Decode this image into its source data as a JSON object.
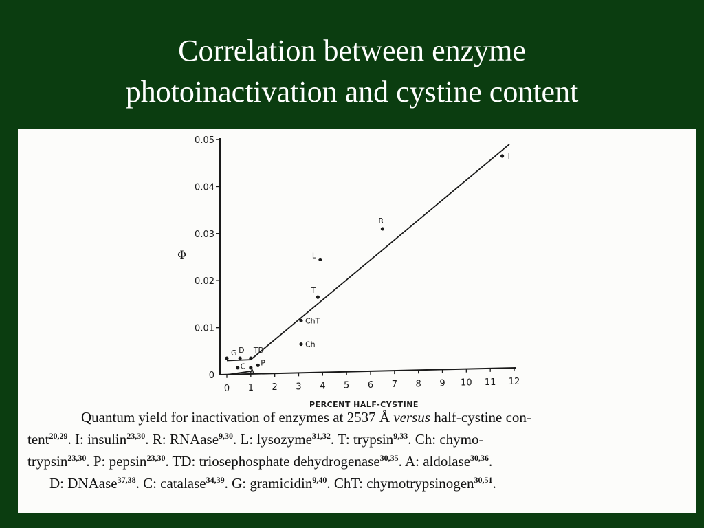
{
  "slide": {
    "title_line1": "Correlation between enzyme",
    "title_line2": "photoinactivation and cystine content"
  },
  "colors": {
    "background": "#0b3d10",
    "paper": "#fcfcfa",
    "ink": "#1a1a1a"
  },
  "chart_data": {
    "type": "scatter",
    "ylabel": "Φ",
    "xlabel": "PERCENT HALF-CYSTINE",
    "xlim": [
      0,
      12
    ],
    "ylim": [
      0,
      0.05
    ],
    "x_ticks": [
      0,
      1,
      2,
      3,
      4,
      5,
      6,
      7,
      8,
      9,
      10,
      11,
      12
    ],
    "x_tick_labels": [
      "0",
      "1",
      "2",
      "3",
      "4",
      "5",
      "6",
      "7",
      "8",
      "9",
      "10",
      "11",
      "12"
    ],
    "y_ticks": [
      0,
      0.01,
      0.02,
      0.03,
      0.04,
      0.05
    ],
    "y_tick_labels": [
      "0",
      "0.01",
      "0.02",
      "0.03",
      "0.04",
      "0.05"
    ],
    "grid": false,
    "points": [
      {
        "label": "I",
        "x": 11.5,
        "y": 0.0465
      },
      {
        "label": "R",
        "x": 6.5,
        "y": 0.031
      },
      {
        "label": "L",
        "x": 3.9,
        "y": 0.0245
      },
      {
        "label": "T",
        "x": 3.8,
        "y": 0.0165
      },
      {
        "label": "ChT",
        "x": 3.1,
        "y": 0.0115
      },
      {
        "label": "Ch",
        "x": 3.1,
        "y": 0.0065
      },
      {
        "label": "G",
        "x": 0.0,
        "y": 0.0035
      },
      {
        "label": "D",
        "x": 0.55,
        "y": 0.0035
      },
      {
        "label": "TD",
        "x": 1.0,
        "y": 0.0035
      },
      {
        "label": "C",
        "x": 0.45,
        "y": 0.0015
      },
      {
        "label": "A",
        "x": 1.0,
        "y": 0.0015
      },
      {
        "label": "P",
        "x": 1.3,
        "y": 0.002
      }
    ],
    "fit_lines": [
      [
        [
          0,
          0.003
        ],
        [
          1,
          0.0032
        ],
        [
          11.8,
          0.049
        ]
      ],
      [
        [
          0,
          0.0
        ],
        [
          1.1,
          0.0008
        ]
      ]
    ]
  },
  "caption": {
    "intro": "Quantum yield for inactivation of enzymes at 2537 Å ",
    "versus": "versus",
    "after_versus": " half-cystine con-",
    "line2a": "tent",
    "ref_a": "20,29",
    "line2b": ". I: insulin",
    "ref_b": "23,30",
    "line2c": ". R: RNAase",
    "ref_c": "9,30",
    "line2d": ". L: lysozyme",
    "ref_d": "31,32",
    "line2e": ". T: trypsin",
    "ref_e": "9,33",
    "line2f": ". Ch: chymo-",
    "line3a": "trypsin",
    "ref_f": "23,30",
    "line3b": ". P: pepsin",
    "ref_g": "23,30",
    "line3c": ". TD: triosephosphate dehydrogenase",
    "ref_h": "30,35",
    "line3d": ". A: aldolase",
    "ref_i": "30,36",
    "line3e": ".",
    "line4a": "D: DNAase",
    "ref_j": "37,38",
    "line4b": ". C: catalase",
    "ref_k": "34,39",
    "line4c": ". G: gramicidin",
    "ref_l": "9,40",
    "line4d": ". ChT: chymotrypsinogen",
    "ref_m": "30,51",
    "line4e": "."
  }
}
